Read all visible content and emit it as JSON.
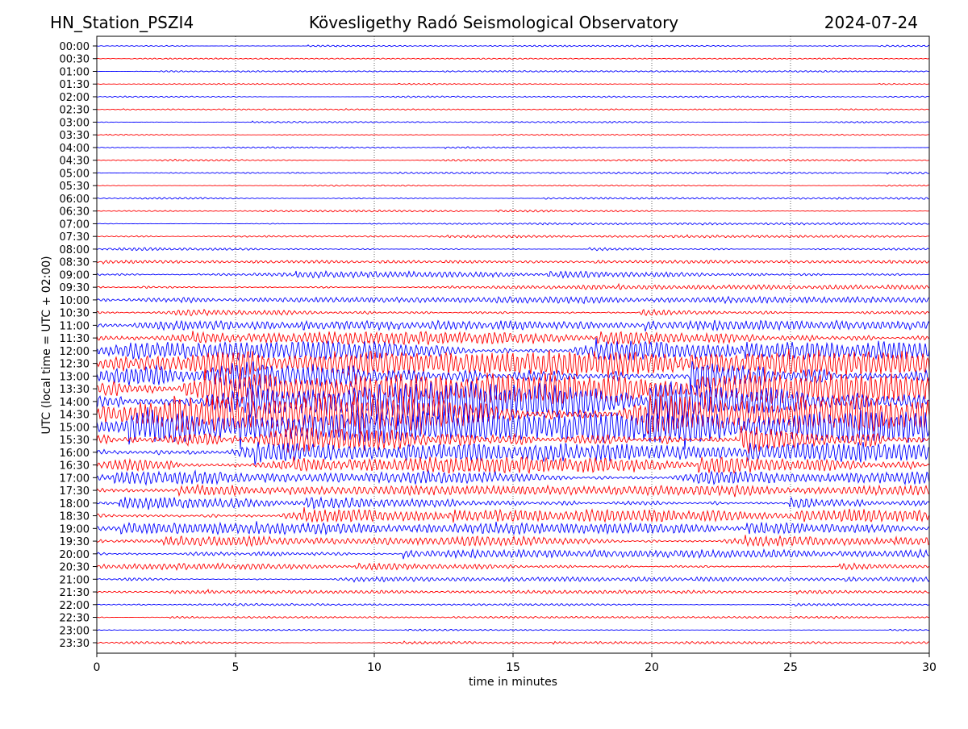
{
  "header": {
    "station": "HN_Station_PSZI4",
    "observatory": "Kövesligethy Radó Seismological Observatory",
    "date": "2024-07-24"
  },
  "chart_data": {
    "type": "line",
    "title": "Kövesligethy Radó Seismological Observatory",
    "xlabel": "time in minutes",
    "ylabel": "UTC (local time = UTC + 02:00)",
    "xlim": [
      0,
      30
    ],
    "xticks": [
      "0",
      "5",
      "10",
      "15",
      "20",
      "25",
      "30"
    ],
    "grid": "vertical dotted at x ticks",
    "series_colors": [
      "#0000ff",
      "#ff0000"
    ],
    "traces": [
      {
        "label": "00:00",
        "relative_amplitude": 0.05
      },
      {
        "label": "00:30",
        "relative_amplitude": 0.04
      },
      {
        "label": "01:00",
        "relative_amplitude": 0.05
      },
      {
        "label": "01:30",
        "relative_amplitude": 0.04
      },
      {
        "label": "02:00",
        "relative_amplitude": 0.05
      },
      {
        "label": "02:30",
        "relative_amplitude": 0.04
      },
      {
        "label": "03:00",
        "relative_amplitude": 0.05
      },
      {
        "label": "03:30",
        "relative_amplitude": 0.04
      },
      {
        "label": "04:00",
        "relative_amplitude": 0.05
      },
      {
        "label": "04:30",
        "relative_amplitude": 0.06
      },
      {
        "label": "05:00",
        "relative_amplitude": 0.06
      },
      {
        "label": "05:30",
        "relative_amplitude": 0.04
      },
      {
        "label": "06:00",
        "relative_amplitude": 0.06
      },
      {
        "label": "06:30",
        "relative_amplitude": 0.07
      },
      {
        "label": "07:00",
        "relative_amplitude": 0.07
      },
      {
        "label": "07:30",
        "relative_amplitude": 0.08
      },
      {
        "label": "08:00",
        "relative_amplitude": 0.1
      },
      {
        "label": "08:30",
        "relative_amplitude": 0.1
      },
      {
        "label": "09:00",
        "relative_amplitude": 0.2
      },
      {
        "label": "09:30",
        "relative_amplitude": 0.15
      },
      {
        "label": "10:00",
        "relative_amplitude": 0.2
      },
      {
        "label": "10:30",
        "relative_amplitude": 0.2
      },
      {
        "label": "11:00",
        "relative_amplitude": 0.3
      },
      {
        "label": "11:30",
        "relative_amplitude": 0.4
      },
      {
        "label": "12:00",
        "relative_amplitude": 0.6
      },
      {
        "label": "12:30",
        "relative_amplitude": 0.8
      },
      {
        "label": "13:00",
        "relative_amplitude": 1.0
      },
      {
        "label": "13:30",
        "relative_amplitude": 1.0
      },
      {
        "label": "14:00",
        "relative_amplitude": 1.2
      },
      {
        "label": "14:30",
        "relative_amplitude": 1.2
      },
      {
        "label": "15:00",
        "relative_amplitude": 1.0
      },
      {
        "label": "15:30",
        "relative_amplitude": 0.9
      },
      {
        "label": "16:00",
        "relative_amplitude": 0.6
      },
      {
        "label": "16:30",
        "relative_amplitude": 0.5
      },
      {
        "label": "17:00",
        "relative_amplitude": 0.4
      },
      {
        "label": "17:30",
        "relative_amplitude": 0.3
      },
      {
        "label": "18:00",
        "relative_amplitude": 0.35
      },
      {
        "label": "18:30",
        "relative_amplitude": 0.4
      },
      {
        "label": "19:00",
        "relative_amplitude": 0.35
      },
      {
        "label": "19:30",
        "relative_amplitude": 0.3
      },
      {
        "label": "20:00",
        "relative_amplitude": 0.25
      },
      {
        "label": "20:30",
        "relative_amplitude": 0.2
      },
      {
        "label": "21:00",
        "relative_amplitude": 0.15
      },
      {
        "label": "21:30",
        "relative_amplitude": 0.1
      },
      {
        "label": "22:00",
        "relative_amplitude": 0.07
      },
      {
        "label": "22:30",
        "relative_amplitude": 0.06
      },
      {
        "label": "23:00",
        "relative_amplitude": 0.05
      },
      {
        "label": "23:30",
        "relative_amplitude": 0.08
      }
    ]
  }
}
